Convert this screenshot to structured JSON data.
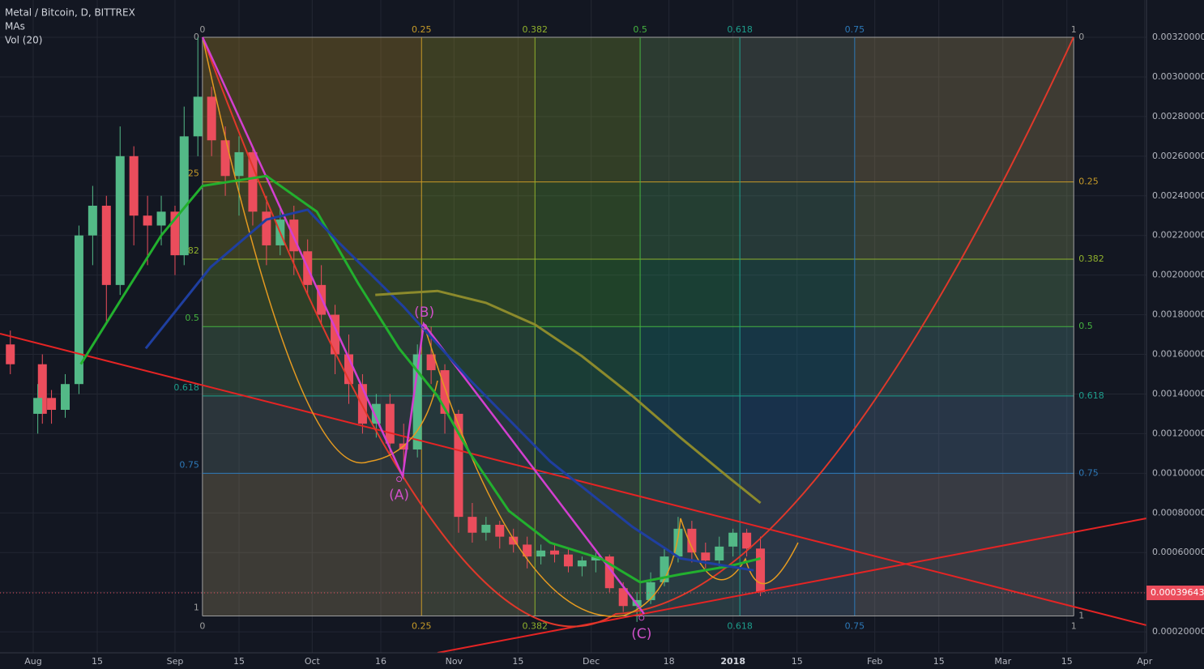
{
  "chart_data": {
    "type": "candlestick",
    "title": "Metal / Bitcoin, D, BITTREX",
    "indicators": [
      "MAs",
      "Vol (20)"
    ],
    "xlim": [
      -7.26,
      243.4
    ],
    "ylim": [
      9.4e-05,
      0.003388
    ],
    "xticks": [
      {
        "value": 0,
        "label": "Aug"
      },
      {
        "value": 14,
        "label": "15"
      },
      {
        "value": 31,
        "label": "Sep"
      },
      {
        "value": 45,
        "label": "15"
      },
      {
        "value": 61,
        "label": "Oct"
      },
      {
        "value": 76,
        "label": "16"
      },
      {
        "value": 92,
        "label": "Nov"
      },
      {
        "value": 106,
        "label": "15"
      },
      {
        "value": 122,
        "label": "Dec"
      },
      {
        "value": 139,
        "label": "18"
      },
      {
        "value": 153,
        "label": "2018"
      },
      {
        "value": 167,
        "label": "15"
      },
      {
        "value": 184,
        "label": "Feb"
      },
      {
        "value": 198,
        "label": "15"
      },
      {
        "value": 212,
        "label": "Mar"
      },
      {
        "value": 226,
        "label": "15"
      },
      {
        "value": 243,
        "label": "Apr"
      }
    ],
    "yticks": [
      {
        "value": 0.0002,
        "label": "0.00020000"
      },
      {
        "value": 0.0004,
        "label": "0.00040000"
      },
      {
        "value": 0.0006,
        "label": "0.00060000"
      },
      {
        "value": 0.0008,
        "label": "0.00080000"
      },
      {
        "value": 0.001,
        "label": "0.00100000"
      },
      {
        "value": 0.0012,
        "label": "0.00120000"
      },
      {
        "value": 0.0014,
        "label": "0.00140000"
      },
      {
        "value": 0.0016,
        "label": "0.00160000"
      },
      {
        "value": 0.0018,
        "label": "0.00180000"
      },
      {
        "value": 0.002,
        "label": "0.00200000"
      },
      {
        "value": 0.0022,
        "label": "0.00220000"
      },
      {
        "value": 0.0024,
        "label": "0.00240000"
      },
      {
        "value": 0.0026,
        "label": "0.00260000"
      },
      {
        "value": 0.0028,
        "label": "0.00280000"
      },
      {
        "value": 0.003,
        "label": "0.00300000"
      },
      {
        "value": 0.0032,
        "label": "0.00320000"
      }
    ],
    "grid": true,
    "up_color": "#53b987",
    "down_color": "#eb4d5c",
    "current_price": 0.00039643,
    "current_price_color": "#eb4d5c",
    "candles": {
      "day": [
        -5,
        2,
        1,
        4,
        7,
        10,
        13,
        16,
        19,
        22,
        25,
        28,
        31,
        33,
        36,
        39,
        42,
        45,
        48,
        51,
        54,
        57,
        60,
        63,
        66,
        69,
        72,
        75,
        78,
        81,
        84,
        87,
        90,
        93,
        96,
        99,
        102,
        105,
        108,
        111,
        114,
        117,
        120,
        123,
        126,
        129,
        132,
        135,
        138,
        141,
        144,
        147,
        150,
        153,
        156,
        159
      ],
      "open": [
        0.00165,
        0.00155,
        0.0013,
        0.00138,
        0.00132,
        0.00145,
        0.0022,
        0.00235,
        0.00195,
        0.0026,
        0.0023,
        0.00225,
        0.00232,
        0.0021,
        0.0027,
        0.0029,
        0.00268,
        0.0025,
        0.00262,
        0.00232,
        0.00215,
        0.00228,
        0.00212,
        0.00195,
        0.0018,
        0.0016,
        0.00145,
        0.00125,
        0.00135,
        0.00115,
        0.00112,
        0.0016,
        0.00152,
        0.0013,
        0.00078,
        0.0007,
        0.00074,
        0.00068,
        0.00064,
        0.00058,
        0.00061,
        0.00059,
        0.00053,
        0.00056,
        0.00058,
        0.00042,
        0.00033,
        0.00036,
        0.00045,
        0.00058,
        0.00072,
        0.0006,
        0.00056,
        0.00063,
        0.0007,
        0.00062
      ],
      "high": [
        0.00172,
        0.0016,
        0.00145,
        0.00142,
        0.0015,
        0.00225,
        0.00245,
        0.0024,
        0.00275,
        0.00265,
        0.0024,
        0.0024,
        0.00235,
        0.00285,
        0.0032,
        0.00295,
        0.00275,
        0.0027,
        0.00265,
        0.0024,
        0.00235,
        0.00235,
        0.00218,
        0.00205,
        0.00185,
        0.0017,
        0.0015,
        0.0014,
        0.0014,
        0.00125,
        0.00165,
        0.00174,
        0.00155,
        0.00132,
        0.00085,
        0.00078,
        0.00076,
        0.00072,
        0.00068,
        0.00064,
        0.00064,
        0.00062,
        0.00058,
        0.0006,
        0.00059,
        0.00045,
        0.0004,
        0.0005,
        0.00062,
        0.00078,
        0.00076,
        0.00065,
        0.00068,
        0.00072,
        0.00072,
        0.00068
      ],
      "low": [
        0.0015,
        0.00125,
        0.0012,
        0.00125,
        0.00128,
        0.0014,
        0.00205,
        0.00175,
        0.0019,
        0.00215,
        0.00205,
        0.00215,
        0.002,
        0.00205,
        0.0026,
        0.0026,
        0.0024,
        0.0023,
        0.00225,
        0.00205,
        0.0021,
        0.002,
        0.0019,
        0.00175,
        0.0015,
        0.00135,
        0.0012,
        0.00118,
        0.0011,
        0.00097,
        0.00108,
        0.00145,
        0.0012,
        0.0007,
        0.00065,
        0.00066,
        0.00062,
        0.0006,
        0.00052,
        0.00054,
        0.00055,
        0.0005,
        0.00048,
        0.0005,
        0.0004,
        0.0003,
        0.00025,
        0.00034,
        0.00043,
        0.00055,
        0.00055,
        0.00052,
        0.00053,
        0.00058,
        0.00058,
        0.00038
      ],
      "close": [
        0.00155,
        0.0013,
        0.00138,
        0.00132,
        0.00145,
        0.0022,
        0.00235,
        0.00195,
        0.0026,
        0.0023,
        0.00225,
        0.00232,
        0.0021,
        0.0027,
        0.0029,
        0.00268,
        0.0025,
        0.00262,
        0.00232,
        0.00215,
        0.00228,
        0.00212,
        0.00195,
        0.0018,
        0.0016,
        0.00145,
        0.00125,
        0.00135,
        0.00115,
        0.00112,
        0.0016,
        0.00152,
        0.0013,
        0.00078,
        0.0007,
        0.00074,
        0.00068,
        0.00064,
        0.00058,
        0.00061,
        0.00059,
        0.00053,
        0.00056,
        0.00058,
        0.00042,
        0.00033,
        0.00036,
        0.00045,
        0.00058,
        0.00072,
        0.0006,
        0.00056,
        0.00063,
        0.0007,
        0.00062,
        0.0004
      ]
    },
    "moving_averages": [
      {
        "color": "#22b02e",
        "day": [
          10.4,
          19.3,
          28,
          37,
          51,
          62,
          71,
          80,
          88.4,
          95.5,
          104,
          113,
          124,
          132.7,
          141.5,
          152,
          159
        ],
        "values": [
          0.00155,
          0.00188,
          0.0022,
          0.00245,
          0.0025,
          0.00232,
          0.00196,
          0.00163,
          0.00139,
          0.0011,
          0.00081,
          0.00065,
          0.00057,
          0.00045,
          0.00049,
          0.00053,
          0.00057
        ]
      },
      {
        "color": "#1f3fa0",
        "day": [
          24.6,
          38.8,
          51,
          60,
          67,
          81,
          95.5,
          113,
          131,
          141.5,
          157.5
        ],
        "values": [
          0.00163,
          0.00204,
          0.00228,
          0.00233,
          0.00216,
          0.00184,
          0.00147,
          0.00106,
          0.00073,
          0.00057,
          0.00051
        ]
      },
      {
        "color": "#8c8a2c",
        "day": [
          74.8,
          88.4,
          99,
          109.7,
          120,
          131,
          141.5,
          152,
          159
        ],
        "values": [
          0.0019,
          0.00192,
          0.00186,
          0.00175,
          0.00159,
          0.00139,
          0.00118,
          0.00098,
          0.00085
        ]
      }
    ],
    "fib": {
      "levels": [
        0,
        0.25,
        0.382,
        0.5,
        0.618,
        0.75,
        1
      ],
      "level_prices": [
        0.0032,
        0.00247,
        0.00208,
        0.00174,
        0.00139,
        0.001,
        0.00028
      ],
      "level_days": [
        37,
        84.9,
        109.7,
        132.7,
        154.5,
        179.6,
        227.5
      ],
      "colors": [
        "#9e9e9e",
        "#c69a28",
        "#8fb02c",
        "#45b340",
        "#1e9e8c",
        "#2d79b8",
        "#9e9e9e"
      ]
    },
    "waves": [
      {
        "label": "(A)",
        "day": 80,
        "price": 0.00097
      },
      {
        "label": "(B)",
        "day": 85.5,
        "price": 0.00174
      },
      {
        "label": "(C)",
        "day": 133,
        "price": 0.00027
      }
    ],
    "wave_color": "#d050c8"
  }
}
